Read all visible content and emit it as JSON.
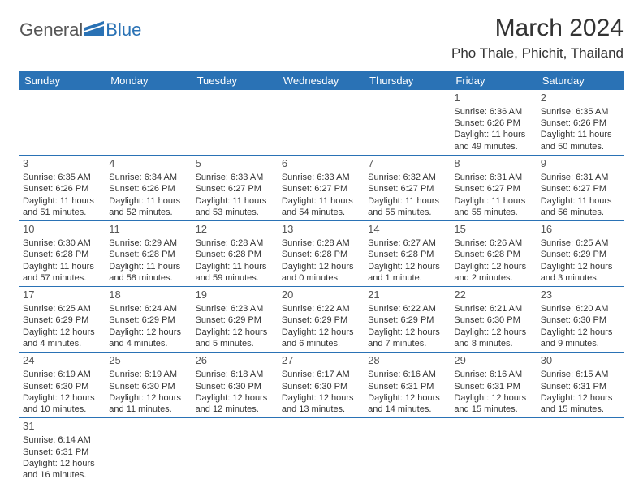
{
  "logo": {
    "part1": "General",
    "part2": "Blue"
  },
  "title": "March 2024",
  "location": "Pho Thale, Phichit, Thailand",
  "colors": {
    "header_bg": "#2a72b5",
    "header_text": "#ffffff",
    "border": "#2a72b5",
    "text": "#333333"
  },
  "weekdays": [
    "Sunday",
    "Monday",
    "Tuesday",
    "Wednesday",
    "Thursday",
    "Friday",
    "Saturday"
  ],
  "weeks": [
    [
      null,
      null,
      null,
      null,
      null,
      {
        "n": "1",
        "sr": "Sunrise: 6:36 AM",
        "ss": "Sunset: 6:26 PM",
        "d1": "Daylight: 11 hours",
        "d2": "and 49 minutes."
      },
      {
        "n": "2",
        "sr": "Sunrise: 6:35 AM",
        "ss": "Sunset: 6:26 PM",
        "d1": "Daylight: 11 hours",
        "d2": "and 50 minutes."
      }
    ],
    [
      {
        "n": "3",
        "sr": "Sunrise: 6:35 AM",
        "ss": "Sunset: 6:26 PM",
        "d1": "Daylight: 11 hours",
        "d2": "and 51 minutes."
      },
      {
        "n": "4",
        "sr": "Sunrise: 6:34 AM",
        "ss": "Sunset: 6:26 PM",
        "d1": "Daylight: 11 hours",
        "d2": "and 52 minutes."
      },
      {
        "n": "5",
        "sr": "Sunrise: 6:33 AM",
        "ss": "Sunset: 6:27 PM",
        "d1": "Daylight: 11 hours",
        "d2": "and 53 minutes."
      },
      {
        "n": "6",
        "sr": "Sunrise: 6:33 AM",
        "ss": "Sunset: 6:27 PM",
        "d1": "Daylight: 11 hours",
        "d2": "and 54 minutes."
      },
      {
        "n": "7",
        "sr": "Sunrise: 6:32 AM",
        "ss": "Sunset: 6:27 PM",
        "d1": "Daylight: 11 hours",
        "d2": "and 55 minutes."
      },
      {
        "n": "8",
        "sr": "Sunrise: 6:31 AM",
        "ss": "Sunset: 6:27 PM",
        "d1": "Daylight: 11 hours",
        "d2": "and 55 minutes."
      },
      {
        "n": "9",
        "sr": "Sunrise: 6:31 AM",
        "ss": "Sunset: 6:27 PM",
        "d1": "Daylight: 11 hours",
        "d2": "and 56 minutes."
      }
    ],
    [
      {
        "n": "10",
        "sr": "Sunrise: 6:30 AM",
        "ss": "Sunset: 6:28 PM",
        "d1": "Daylight: 11 hours",
        "d2": "and 57 minutes."
      },
      {
        "n": "11",
        "sr": "Sunrise: 6:29 AM",
        "ss": "Sunset: 6:28 PM",
        "d1": "Daylight: 11 hours",
        "d2": "and 58 minutes."
      },
      {
        "n": "12",
        "sr": "Sunrise: 6:28 AM",
        "ss": "Sunset: 6:28 PM",
        "d1": "Daylight: 11 hours",
        "d2": "and 59 minutes."
      },
      {
        "n": "13",
        "sr": "Sunrise: 6:28 AM",
        "ss": "Sunset: 6:28 PM",
        "d1": "Daylight: 12 hours",
        "d2": "and 0 minutes."
      },
      {
        "n": "14",
        "sr": "Sunrise: 6:27 AM",
        "ss": "Sunset: 6:28 PM",
        "d1": "Daylight: 12 hours",
        "d2": "and 1 minute."
      },
      {
        "n": "15",
        "sr": "Sunrise: 6:26 AM",
        "ss": "Sunset: 6:28 PM",
        "d1": "Daylight: 12 hours",
        "d2": "and 2 minutes."
      },
      {
        "n": "16",
        "sr": "Sunrise: 6:25 AM",
        "ss": "Sunset: 6:29 PM",
        "d1": "Daylight: 12 hours",
        "d2": "and 3 minutes."
      }
    ],
    [
      {
        "n": "17",
        "sr": "Sunrise: 6:25 AM",
        "ss": "Sunset: 6:29 PM",
        "d1": "Daylight: 12 hours",
        "d2": "and 4 minutes."
      },
      {
        "n": "18",
        "sr": "Sunrise: 6:24 AM",
        "ss": "Sunset: 6:29 PM",
        "d1": "Daylight: 12 hours",
        "d2": "and 4 minutes."
      },
      {
        "n": "19",
        "sr": "Sunrise: 6:23 AM",
        "ss": "Sunset: 6:29 PM",
        "d1": "Daylight: 12 hours",
        "d2": "and 5 minutes."
      },
      {
        "n": "20",
        "sr": "Sunrise: 6:22 AM",
        "ss": "Sunset: 6:29 PM",
        "d1": "Daylight: 12 hours",
        "d2": "and 6 minutes."
      },
      {
        "n": "21",
        "sr": "Sunrise: 6:22 AM",
        "ss": "Sunset: 6:29 PM",
        "d1": "Daylight: 12 hours",
        "d2": "and 7 minutes."
      },
      {
        "n": "22",
        "sr": "Sunrise: 6:21 AM",
        "ss": "Sunset: 6:30 PM",
        "d1": "Daylight: 12 hours",
        "d2": "and 8 minutes."
      },
      {
        "n": "23",
        "sr": "Sunrise: 6:20 AM",
        "ss": "Sunset: 6:30 PM",
        "d1": "Daylight: 12 hours",
        "d2": "and 9 minutes."
      }
    ],
    [
      {
        "n": "24",
        "sr": "Sunrise: 6:19 AM",
        "ss": "Sunset: 6:30 PM",
        "d1": "Daylight: 12 hours",
        "d2": "and 10 minutes."
      },
      {
        "n": "25",
        "sr": "Sunrise: 6:19 AM",
        "ss": "Sunset: 6:30 PM",
        "d1": "Daylight: 12 hours",
        "d2": "and 11 minutes."
      },
      {
        "n": "26",
        "sr": "Sunrise: 6:18 AM",
        "ss": "Sunset: 6:30 PM",
        "d1": "Daylight: 12 hours",
        "d2": "and 12 minutes."
      },
      {
        "n": "27",
        "sr": "Sunrise: 6:17 AM",
        "ss": "Sunset: 6:30 PM",
        "d1": "Daylight: 12 hours",
        "d2": "and 13 minutes."
      },
      {
        "n": "28",
        "sr": "Sunrise: 6:16 AM",
        "ss": "Sunset: 6:31 PM",
        "d1": "Daylight: 12 hours",
        "d2": "and 14 minutes."
      },
      {
        "n": "29",
        "sr": "Sunrise: 6:16 AM",
        "ss": "Sunset: 6:31 PM",
        "d1": "Daylight: 12 hours",
        "d2": "and 15 minutes."
      },
      {
        "n": "30",
        "sr": "Sunrise: 6:15 AM",
        "ss": "Sunset: 6:31 PM",
        "d1": "Daylight: 12 hours",
        "d2": "and 15 minutes."
      }
    ],
    [
      {
        "n": "31",
        "sr": "Sunrise: 6:14 AM",
        "ss": "Sunset: 6:31 PM",
        "d1": "Daylight: 12 hours",
        "d2": "and 16 minutes."
      },
      null,
      null,
      null,
      null,
      null,
      null
    ]
  ]
}
